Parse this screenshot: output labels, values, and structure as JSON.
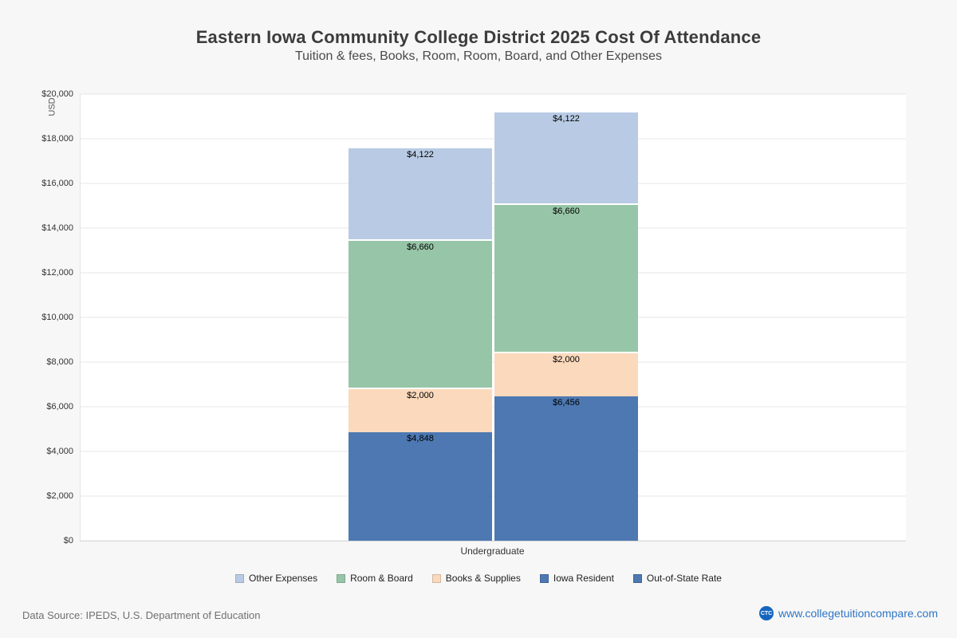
{
  "page": {
    "title": "Eastern Iowa Community College District 2025 Cost Of Attendance",
    "subtitle": "Tuition & fees, Books, Room, Room, Board, and Other Expenses",
    "footer": {
      "source": "Data Source: IPEDS, U.S. Department of Education",
      "site": "www.collegetuitioncompare.com",
      "logo": "CTC"
    }
  },
  "chart_data": {
    "type": "bar",
    "stacked": true,
    "title": "Eastern Iowa Community College District 2025 Cost Of Attendance",
    "subtitle": "Tuition & fees, Books, Room, Room, Board, and Other Expenses",
    "ylabel": "USD",
    "xlabel": "",
    "categories": [
      "Undergraduate"
    ],
    "x_tick_label": "Undergraduate",
    "ylim": [
      0,
      20000
    ],
    "ytick_step": 2000,
    "grid": true,
    "legend_position": "bottom",
    "bars": [
      {
        "name": "Iowa Resident",
        "total": 17630,
        "segments": [
          {
            "label": "Iowa Resident",
            "value": 4848,
            "display": "$4,848",
            "color": "#4d78b2"
          },
          {
            "label": "Books & Supplies",
            "value": 2000,
            "display": "$2,000",
            "color": "#fbd9bc"
          },
          {
            "label": "Room & Board",
            "value": 6660,
            "display": "$6,660",
            "color": "#97c5a7"
          },
          {
            "label": "Other Expenses",
            "value": 4122,
            "display": "$4,122",
            "color": "#b9cbe4"
          }
        ]
      },
      {
        "name": "Out-of-State Rate",
        "total": 19238,
        "segments": [
          {
            "label": "Out-of-State Rate",
            "value": 6456,
            "display": "$6,456",
            "color": "#4d78b2"
          },
          {
            "label": "Books & Supplies",
            "value": 2000,
            "display": "$2,000",
            "color": "#fbd9bc"
          },
          {
            "label": "Room & Board",
            "value": 6660,
            "display": "$6,660",
            "color": "#97c5a7"
          },
          {
            "label": "Other Expenses",
            "value": 4122,
            "display": "$4,122",
            "color": "#b9cbe4"
          }
        ]
      }
    ],
    "legend": [
      {
        "label": "Other Expenses",
        "color": "#b9cbe4"
      },
      {
        "label": "Room & Board",
        "color": "#97c5a7"
      },
      {
        "label": "Books & Supplies",
        "color": "#fbd9bc"
      },
      {
        "label": "Iowa Resident",
        "color": "#4d78b2"
      },
      {
        "label": "Out-of-State Rate",
        "color": "#4d78b2"
      }
    ]
  }
}
